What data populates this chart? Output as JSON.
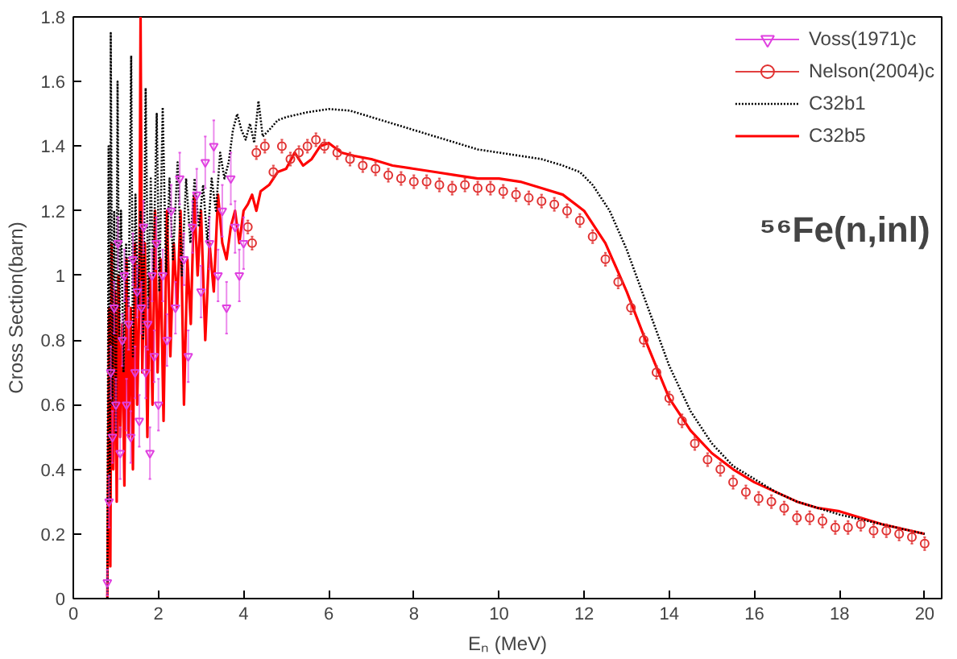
{
  "chart_data": {
    "type": "line",
    "xlabel": "Eₙ (MeV)",
    "ylabel": "Cross Section(barn)",
    "annotations": [
      "⁵⁶Fe(n,inl)"
    ],
    "xlim": [
      0,
      20.4
    ],
    "ylim": [
      0,
      1.8
    ],
    "xticks": [
      0,
      2,
      4,
      6,
      8,
      10,
      12,
      14,
      16,
      18,
      20
    ],
    "yticks": [
      0,
      0.2,
      0.4,
      0.6,
      0.8,
      1,
      1.2,
      1.4,
      1.6,
      1.8
    ],
    "grid": false,
    "legend": "top right",
    "series": [
      {
        "name": "Voss(1971)c",
        "type": "scatter",
        "marker": "triangle",
        "color": "#e040e0",
        "x": [
          0.8,
          0.84,
          0.88,
          0.92,
          0.96,
          1.0,
          1.05,
          1.1,
          1.15,
          1.2,
          1.25,
          1.3,
          1.35,
          1.4,
          1.45,
          1.5,
          1.55,
          1.6,
          1.65,
          1.7,
          1.75,
          1.8,
          1.85,
          1.9,
          1.95,
          2.0,
          2.1,
          2.2,
          2.3,
          2.4,
          2.5,
          2.6,
          2.7,
          2.8,
          2.9,
          3.0,
          3.1,
          3.2,
          3.3,
          3.4,
          3.5,
          3.6,
          3.7,
          3.8,
          3.9,
          4.0
        ],
        "values": [
          0.05,
          0.3,
          0.7,
          0.5,
          0.9,
          0.6,
          1.1,
          0.45,
          0.8,
          1.0,
          0.6,
          0.85,
          0.5,
          1.05,
          0.7,
          0.95,
          0.55,
          0.9,
          1.15,
          0.7,
          0.85,
          0.45,
          1.0,
          0.75,
          1.1,
          0.6,
          1.0,
          0.8,
          1.2,
          0.9,
          1.3,
          1.05,
          0.75,
          1.15,
          1.25,
          0.95,
          1.35,
          1.1,
          1.4,
          1.0,
          1.2,
          0.9,
          1.3,
          1.15,
          1.0,
          1.1
        ],
        "errors": [
          0.04,
          0.08,
          0.08,
          0.08,
          0.08,
          0.08,
          0.08,
          0.08,
          0.08,
          0.08,
          0.08,
          0.08,
          0.08,
          0.08,
          0.08,
          0.08,
          0.08,
          0.08,
          0.08,
          0.08,
          0.08,
          0.08,
          0.08,
          0.08,
          0.08,
          0.08,
          0.08,
          0.08,
          0.08,
          0.08,
          0.08,
          0.08,
          0.08,
          0.08,
          0.08,
          0.08,
          0.08,
          0.08,
          0.08,
          0.08,
          0.08,
          0.08,
          0.08,
          0.08,
          0.08,
          0.08
        ]
      },
      {
        "name": "Nelson(2004)c",
        "type": "scatter",
        "marker": "circle",
        "color": "#e03030",
        "x": [
          4.1,
          4.2,
          4.3,
          4.5,
          4.7,
          4.9,
          5.1,
          5.3,
          5.5,
          5.7,
          5.9,
          6.2,
          6.5,
          6.8,
          7.1,
          7.4,
          7.7,
          8.0,
          8.3,
          8.6,
          8.9,
          9.2,
          9.5,
          9.8,
          10.1,
          10.4,
          10.7,
          11.0,
          11.3,
          11.6,
          11.9,
          12.2,
          12.5,
          12.8,
          13.1,
          13.4,
          13.7,
          14.0,
          14.3,
          14.6,
          14.9,
          15.2,
          15.5,
          15.8,
          16.1,
          16.4,
          16.7,
          17.0,
          17.3,
          17.6,
          17.9,
          18.2,
          18.5,
          18.8,
          19.1,
          19.4,
          19.7,
          20.0
        ],
        "values": [
          1.15,
          1.1,
          1.38,
          1.4,
          1.32,
          1.4,
          1.36,
          1.38,
          1.4,
          1.42,
          1.4,
          1.38,
          1.36,
          1.34,
          1.33,
          1.31,
          1.3,
          1.29,
          1.29,
          1.28,
          1.27,
          1.28,
          1.27,
          1.27,
          1.26,
          1.25,
          1.24,
          1.23,
          1.22,
          1.2,
          1.17,
          1.12,
          1.05,
          0.98,
          0.9,
          0.8,
          0.7,
          0.62,
          0.55,
          0.48,
          0.43,
          0.4,
          0.36,
          0.33,
          0.31,
          0.3,
          0.28,
          0.25,
          0.25,
          0.24,
          0.22,
          0.22,
          0.23,
          0.21,
          0.21,
          0.2,
          0.19,
          0.17
        ],
        "errors": [
          0.02,
          0.02,
          0.02,
          0.02,
          0.02,
          0.02,
          0.02,
          0.02,
          0.02,
          0.02,
          0.02,
          0.02,
          0.02,
          0.02,
          0.02,
          0.02,
          0.02,
          0.02,
          0.02,
          0.02,
          0.02,
          0.02,
          0.02,
          0.02,
          0.02,
          0.02,
          0.02,
          0.02,
          0.02,
          0.02,
          0.02,
          0.02,
          0.02,
          0.02,
          0.02,
          0.02,
          0.02,
          0.02,
          0.02,
          0.02,
          0.02,
          0.02,
          0.02,
          0.02,
          0.02,
          0.02,
          0.02,
          0.02,
          0.02,
          0.02,
          0.02,
          0.02,
          0.02,
          0.02,
          0.02,
          0.02,
          0.02,
          0.02
        ]
      },
      {
        "name": "C32b1",
        "type": "line",
        "line_style": "dotted",
        "color": "#000000",
        "x": [
          0.8,
          0.83,
          0.86,
          0.88,
          0.92,
          0.96,
          1.0,
          1.04,
          1.08,
          1.12,
          1.18,
          1.24,
          1.3,
          1.36,
          1.4,
          1.46,
          1.52,
          1.58,
          1.64,
          1.7,
          1.76,
          1.82,
          1.88,
          1.96,
          2.02,
          2.1,
          2.18,
          2.26,
          2.34,
          2.45,
          2.55,
          2.65,
          2.75,
          2.85,
          2.95,
          3.05,
          3.15,
          3.25,
          3.35,
          3.45,
          3.55,
          3.65,
          3.75,
          3.85,
          3.95,
          4.05,
          4.15,
          4.25,
          4.35,
          4.45,
          4.6,
          4.8,
          5.0,
          5.5,
          6.0,
          6.5,
          7.0,
          7.5,
          8.0,
          8.5,
          9.0,
          9.5,
          10.0,
          10.5,
          11.0,
          11.5,
          11.9,
          12.2,
          12.6,
          13.0,
          13.5,
          14.0,
          14.5,
          15.0,
          15.5,
          16.0,
          16.5,
          17.0,
          17.5,
          18.0,
          18.5,
          19.0,
          19.5,
          20.0
        ],
        "values": [
          0.0,
          1.4,
          0.3,
          1.75,
          0.6,
          1.2,
          0.5,
          1.6,
          0.8,
          1.2,
          0.7,
          1.1,
          0.9,
          1.68,
          0.75,
          1.25,
          0.9,
          1.2,
          0.8,
          1.58,
          0.9,
          1.3,
          1.0,
          1.5,
          0.95,
          1.52,
          1.0,
          1.3,
          1.05,
          1.35,
          1.0,
          1.3,
          1.1,
          1.3,
          1.15,
          1.28,
          1.1,
          1.3,
          1.2,
          1.38,
          1.3,
          1.35,
          1.45,
          1.5,
          1.45,
          1.42,
          1.47,
          1.41,
          1.54,
          1.43,
          1.45,
          1.48,
          1.49,
          1.505,
          1.515,
          1.51,
          1.49,
          1.47,
          1.45,
          1.43,
          1.41,
          1.39,
          1.38,
          1.37,
          1.36,
          1.34,
          1.32,
          1.28,
          1.2,
          1.08,
          0.9,
          0.72,
          0.58,
          0.48,
          0.41,
          0.37,
          0.33,
          0.3,
          0.28,
          0.26,
          0.245,
          0.23,
          0.215,
          0.2
        ]
      },
      {
        "name": "C32b5",
        "type": "line",
        "line_style": "solid",
        "color": "#ff0000",
        "x": [
          0.8,
          0.84,
          0.87,
          0.9,
          0.94,
          0.98,
          1.02,
          1.06,
          1.1,
          1.15,
          1.2,
          1.25,
          1.3,
          1.35,
          1.4,
          1.45,
          1.5,
          1.55,
          1.58,
          1.62,
          1.68,
          1.74,
          1.8,
          1.86,
          1.92,
          1.98,
          2.05,
          2.12,
          2.2,
          2.28,
          2.36,
          2.44,
          2.52,
          2.6,
          2.68,
          2.76,
          2.84,
          2.92,
          3.0,
          3.1,
          3.2,
          3.3,
          3.4,
          3.5,
          3.6,
          3.7,
          3.8,
          3.9,
          4.0,
          4.1,
          4.2,
          4.3,
          4.4,
          4.6,
          4.8,
          5.0,
          5.2,
          5.4,
          5.6,
          5.8,
          6.0,
          6.3,
          6.6,
          7.0,
          7.5,
          8.0,
          8.5,
          9.0,
          9.5,
          10.0,
          10.5,
          11.0,
          11.5,
          12.0,
          12.5,
          13.0,
          13.5,
          14.0,
          14.5,
          15.0,
          15.5,
          16.0,
          16.5,
          17.0,
          17.5,
          18.0,
          18.5,
          19.0,
          19.5,
          20.0
        ],
        "values": [
          0.0,
          0.9,
          0.1,
          1.1,
          0.4,
          0.95,
          0.3,
          1.0,
          0.5,
          0.85,
          0.35,
          1.05,
          0.5,
          0.9,
          0.4,
          1.1,
          0.6,
          0.9,
          1.8,
          0.7,
          1.1,
          0.5,
          1.0,
          0.6,
          1.2,
          0.7,
          1.05,
          0.55,
          1.2,
          0.75,
          1.1,
          0.9,
          1.2,
          0.6,
          1.05,
          0.85,
          1.25,
          1.0,
          1.2,
          0.8,
          1.1,
          0.95,
          1.25,
          1.1,
          1.05,
          1.15,
          1.2,
          1.1,
          1.2,
          1.22,
          1.25,
          1.2,
          1.26,
          1.28,
          1.32,
          1.33,
          1.38,
          1.34,
          1.36,
          1.4,
          1.41,
          1.38,
          1.37,
          1.36,
          1.34,
          1.33,
          1.32,
          1.31,
          1.3,
          1.3,
          1.29,
          1.27,
          1.25,
          1.2,
          1.1,
          0.95,
          0.78,
          0.62,
          0.52,
          0.45,
          0.4,
          0.36,
          0.33,
          0.3,
          0.28,
          0.27,
          0.25,
          0.23,
          0.215,
          0.2
        ]
      }
    ]
  }
}
